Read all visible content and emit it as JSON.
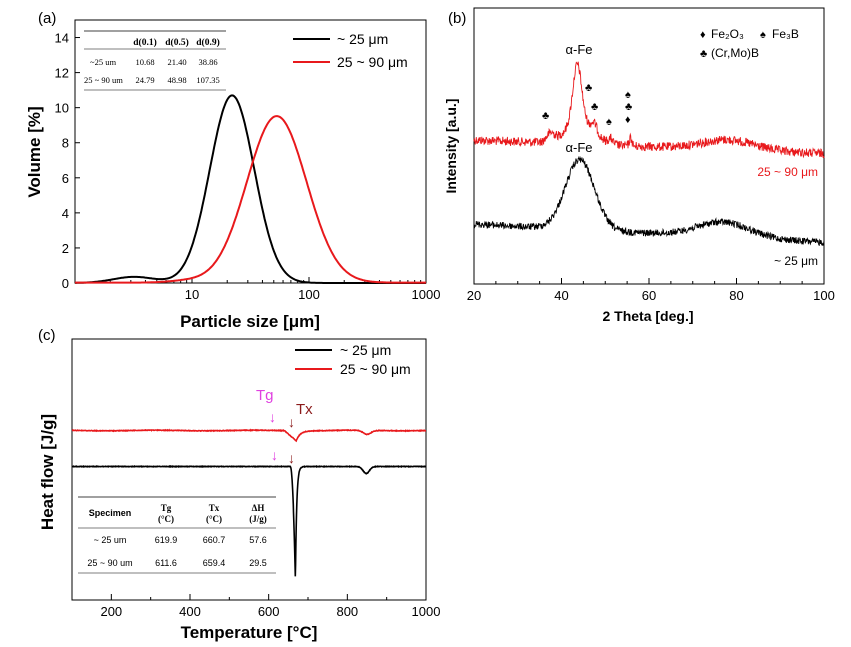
{
  "colors": {
    "small": "#000000",
    "large": "#e8191c",
    "tg": "#e040e0",
    "tx": "#8b1a1a"
  },
  "panel_a": {
    "label": "(a)",
    "table": {
      "headers": [
        "",
        "d(0.1)",
        "d(0.5)",
        "d(0.9)"
      ],
      "rows": [
        [
          "~25 um",
          "10.68",
          "21.40",
          "38.86"
        ],
        [
          "25 ~ 90 um",
          "24.79",
          "48.98",
          "107.35"
        ]
      ]
    },
    "legend": [
      "~ 25 μm",
      "25 ~ 90 μm"
    ]
  },
  "panel_b": {
    "label": "(b)",
    "peak_label_top": "α-Fe",
    "peak_label_bottom": "α-Fe",
    "curve_label_top": "25 ~ 90 μm",
    "curve_label_bottom": "~ 25 μm",
    "legend_fe2o3": "Fe₂O₃",
    "legend_fe3b": "Fe₃B",
    "legend_crmob": "(Cr,Mo)B",
    "marker_diamond": "♦",
    "marker_spade": "♠",
    "marker_club": "♣"
  },
  "panel_c": {
    "label": "(c)",
    "legend": [
      "~ 25 μm",
      "25 ~ 90 μm"
    ],
    "tg_label": "Tg",
    "tx_label": "Tx",
    "arrow": "↓",
    "table": {
      "headers": [
        "Specimen",
        "Tg\n(°C)",
        "Tx\n(°C)",
        "ΔH\n(J/g)"
      ],
      "rows": [
        [
          "~ 25 um",
          "619.9",
          "660.7",
          "57.6"
        ],
        [
          "25 ~ 90 um",
          "611.6",
          "659.4",
          "29.5"
        ]
      ]
    }
  },
  "chart_data": [
    {
      "type": "line",
      "panel": "a",
      "xlabel": "Particle size [μm]",
      "ylabel": "Volume [%]",
      "xscale": "log",
      "xlim": [
        1,
        1000
      ],
      "ylim": [
        0,
        15
      ],
      "xticks": [
        10,
        100,
        1000
      ],
      "xtick_labels": [
        "10",
        "100",
        "1000"
      ],
      "yticks": [
        0,
        2,
        4,
        6,
        8,
        10,
        12,
        14
      ],
      "ytick_labels": [
        "0",
        "2",
        "4",
        "6",
        "8",
        "10",
        "12",
        "14"
      ],
      "series": [
        {
          "name": "~ 25 μm",
          "color": "#000000",
          "peak_x": 22,
          "peak_y": 10.7,
          "log_sigma": 0.19,
          "shoulder_x": 3.2,
          "shoulder_y": 0.35
        },
        {
          "name": "25 ~ 90 μm",
          "color": "#e8191c",
          "peak_x": 53,
          "peak_y": 9.5,
          "log_sigma": 0.255,
          "base_y": 0.1
        }
      ]
    },
    {
      "type": "line",
      "panel": "b",
      "xlabel": "2 Theta [deg.]",
      "ylabel": "Intensity [a.u.]",
      "xlim": [
        20,
        100
      ],
      "xticks": [
        20,
        40,
        60,
        80,
        100
      ],
      "xtick_labels": [
        "20",
        "40",
        "60",
        "80",
        "100"
      ],
      "series": [
        {
          "name": "25 ~ 90 μm",
          "color": "#e8191c",
          "main_peak_2theta": 43.5
        },
        {
          "name": "~ 25 μm",
          "color": "#000000",
          "main_peak_2theta": 44.2
        }
      ]
    },
    {
      "type": "line",
      "panel": "c",
      "xlabel": "Temperature [°C]",
      "ylabel": "Heat flow [J/g]",
      "xlim": [
        100,
        1000
      ],
      "xticks": [
        200,
        400,
        600,
        800,
        1000
      ],
      "xtick_labels": [
        "200",
        "400",
        "600",
        "800",
        "1000"
      ],
      "series": [
        {
          "name": "~ 25 μm",
          "color": "#000000",
          "tg": 619.9,
          "tx": 660.7,
          "peak_t": 668
        },
        {
          "name": "25 ~ 90 μm",
          "color": "#e8191c",
          "tg": 611.6,
          "tx": 659.4,
          "peak_t": 670
        }
      ]
    }
  ]
}
